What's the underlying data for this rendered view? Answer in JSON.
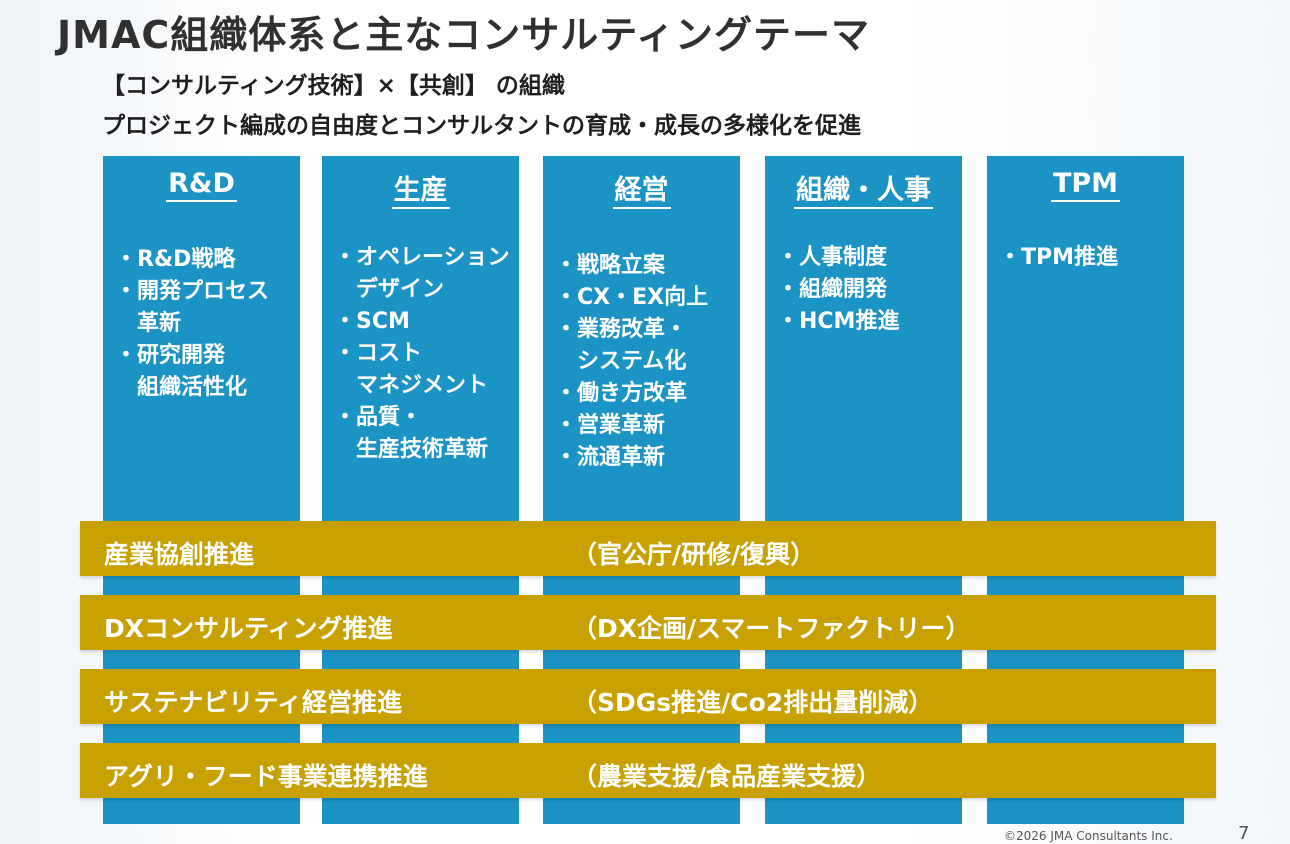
{
  "title": "JMAC組織体系と主なコンサルティングテーマ",
  "subtitle": {
    "line1": "【コンサルティング技術】×【共創】 の組織",
    "line2": "プロジェクト編成の自由度とコンサルタントの育成・成長の多様化を促進"
  },
  "columns": [
    {
      "title": "R&D",
      "items": "・R&D戦略\n・開発プロセス\n　革新\n・研究開発\n　組織活性化"
    },
    {
      "title": "生産",
      "items": "・オペレーション\n　デザイン\n・SCM\n・コスト\n　マネジメント\n・品質・\n　生産技術革新"
    },
    {
      "title": "経営",
      "items": "・戦略立案\n・CX・EX向上\n・業務改革・\n　システム化\n・働き方改革\n・営業革新\n・流通革新"
    },
    {
      "title": "組織・人事",
      "items": "・人事制度\n・組織開発\n・HCM推進"
    },
    {
      "title": "TPM",
      "items": "・TPM推進"
    }
  ],
  "bands": [
    {
      "label": "産業協創推進",
      "note": "（官公庁/研修/復興）"
    },
    {
      "label": "DXコンサルティング推進",
      "note": "（DX企画/スマートファクトリー）"
    },
    {
      "label": "サステナビリティ経営推進",
      "note": "（SDGs推進/Co2排出量削減）"
    },
    {
      "label": "アグリ・フード事業連携推進",
      "note": "（農業支援/食品産業支援）"
    }
  ],
  "footer": {
    "copyright": "©2026 JMA Consultants Inc.",
    "page": "7"
  },
  "colors": {
    "column_blue": "#1b93c4",
    "band_gold": "#c8a100"
  }
}
